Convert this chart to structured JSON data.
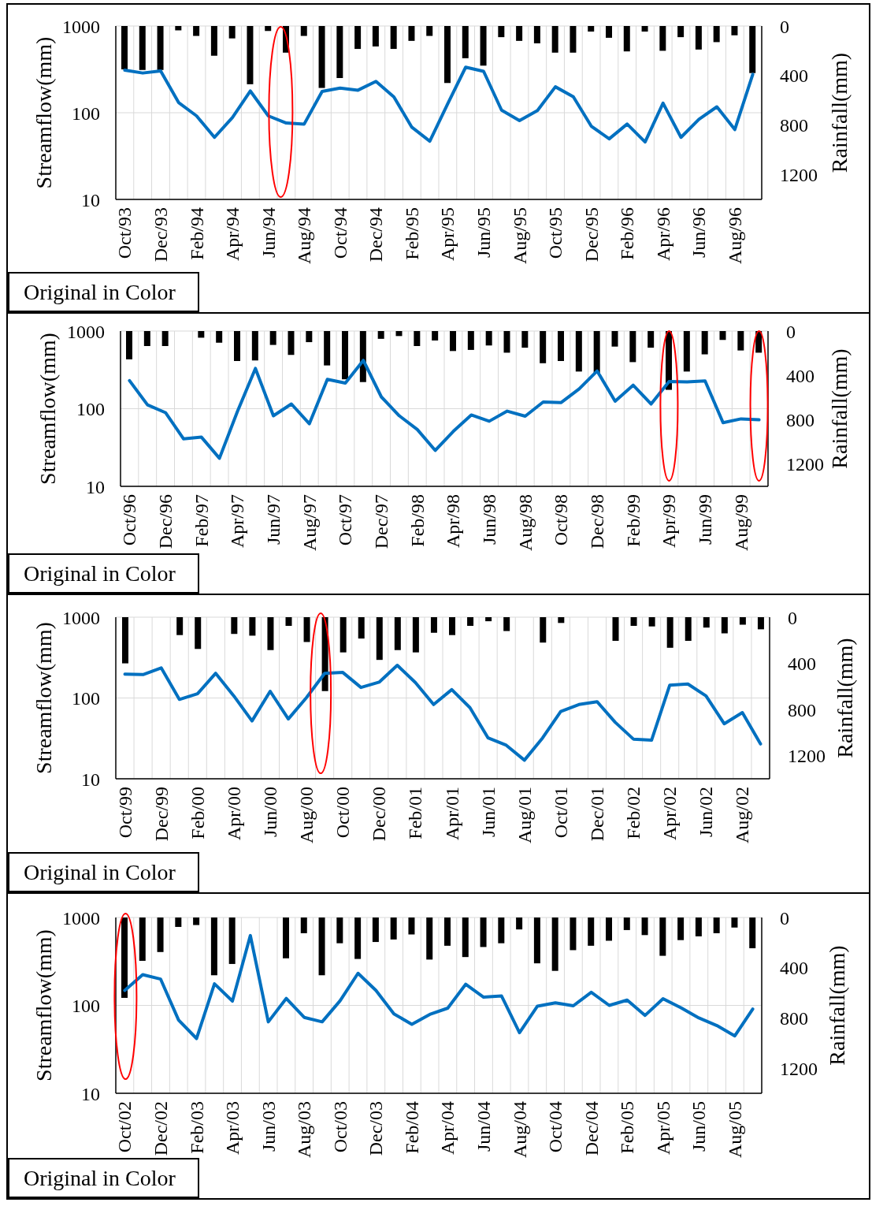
{
  "chart_data": [
    {
      "type": "bar",
      "categories": [
        "Oct/93",
        null,
        "Dec/93",
        null,
        "Feb/94",
        null,
        "Apr/94",
        null,
        "Jun/94",
        null,
        "Aug/94",
        null,
        "Oct/94",
        null,
        "Dec/94",
        null,
        "Feb/95",
        null,
        "Apr/95",
        null,
        "Jun/95",
        null,
        "Aug/95",
        null,
        "Oct/95",
        null,
        "Dec/95",
        null,
        "Feb/96",
        null,
        "Apr/96",
        null,
        "Jun/96",
        null,
        "Aug/96",
        null
      ],
      "series": [
        {
          "axis": "y2",
          "color": "#000000",
          "values": [
            350,
            355,
            355,
            35,
            80,
            240,
            100,
            470,
            40,
            215,
            80,
            500,
            420,
            185,
            165,
            185,
            120,
            80,
            460,
            260,
            320,
            90,
            120,
            140,
            215,
            215,
            45,
            95,
            205,
            45,
            200,
            90,
            190,
            130,
            75,
            380
          ]
        },
        {
          "type": "line",
          "color": "#0070c0",
          "values": [
            310,
            287,
            303,
            131,
            92,
            52,
            88,
            178,
            92,
            76,
            74,
            176,
            192,
            182,
            230,
            152,
            68,
            47,
            127,
            335,
            300,
            107,
            81,
            106,
            199,
            153,
            70,
            50,
            74,
            46,
            129,
            52,
            84,
            117,
            64,
            277
          ]
        }
      ],
      "ylabel": "Streamflow(mm)",
      "y2label": "Rainfall(mm)",
      "ylim": [
        10,
        1000
      ],
      "yticks": [
        10,
        100,
        1000
      ],
      "y2lim": [
        1400,
        0
      ],
      "y2ticks": [
        0,
        400,
        800,
        1200
      ],
      "log": "y",
      "grid": true,
      "annotations": [
        "Original in Color"
      ]
    },
    {
      "type": "bar",
      "categories": [
        "Oct/96",
        null,
        "Dec/96",
        null,
        "Feb/97",
        null,
        "Apr/97",
        null,
        "Jun/97",
        null,
        "Aug/97",
        null,
        "Oct/97",
        null,
        "Dec/97",
        null,
        "Feb/98",
        null,
        "Apr/98",
        null,
        "Jun/98",
        null,
        "Aug/98",
        null,
        "Oct/98",
        null,
        "Dec/98",
        null,
        "Feb/99",
        null,
        "Apr/99",
        null,
        "Jun/99",
        null,
        "Aug/99",
        null
      ],
      "series": [
        {
          "axis": "y2",
          "color": "#000000",
          "values": [
            255,
            135,
            135,
            0,
            60,
            105,
            270,
            265,
            125,
            215,
            100,
            310,
            435,
            460,
            70,
            45,
            135,
            85,
            180,
            170,
            130,
            195,
            150,
            290,
            270,
            365,
            380,
            140,
            280,
            150,
            530,
            365,
            210,
            80,
            175,
            195
          ]
        },
        {
          "type": "line",
          "color": "#0070c0",
          "values": [
            230,
            112,
            89,
            41,
            43,
            23,
            92,
            330,
            81,
            115,
            64,
            239,
            214,
            419,
            142,
            81,
            54,
            29,
            51,
            83,
            69,
            93,
            80,
            122,
            120,
            180,
            306,
            125,
            201,
            115,
            224,
            222,
            228,
            66,
            74,
            72
          ]
        }
      ],
      "ylabel": "Streamflow(mm)",
      "y2label": "Rainfall(mm)",
      "ylim": [
        10,
        1000
      ],
      "yticks": [
        10,
        100,
        1000
      ],
      "y2lim": [
        1400,
        0
      ],
      "y2ticks": [
        0,
        400,
        800,
        1200
      ],
      "log": "y",
      "grid": true,
      "annotations": [
        "Original in Color"
      ]
    },
    {
      "type": "bar",
      "categories": [
        "Oct/99",
        null,
        "Dec/99",
        null,
        "Feb/00",
        null,
        "Apr/00",
        null,
        "Jun/00",
        null,
        "Aug/00",
        null,
        "Oct/00",
        null,
        "Dec/00",
        null,
        "Feb/01",
        null,
        "Apr/01",
        null,
        "Jun/01",
        null,
        "Aug/01",
        null,
        "Oct/01",
        null,
        "Dec/01",
        null,
        "Feb/02",
        null,
        "Apr/02",
        null,
        "Jun/02",
        null,
        "Aug/02",
        null
      ],
      "series": [
        {
          "axis": "y2",
          "color": "#000000",
          "values": [
            400,
            0,
            0,
            155,
            275,
            0,
            145,
            160,
            285,
            75,
            215,
            640,
            305,
            185,
            370,
            285,
            305,
            135,
            155,
            75,
            35,
            120,
            0,
            220,
            50,
            0,
            0,
            205,
            75,
            80,
            265,
            205,
            90,
            140,
            65,
            105
          ]
        },
        {
          "type": "line",
          "color": "#0070c0",
          "values": [
            197,
            195,
            236,
            96,
            113,
            202,
            106,
            52,
            121,
            55,
            101,
            202,
            207,
            135,
            157,
            254,
            155,
            83,
            127,
            76,
            32,
            26,
            17,
            32,
            68,
            83,
            90,
            50,
            31,
            30,
            144,
            149,
            106,
            48,
            66,
            27
          ]
        }
      ],
      "ylabel": "Streamflow(mm)",
      "y2label": "Rainfall(mm)",
      "ylim": [
        10,
        1000
      ],
      "yticks": [
        10,
        100,
        1000
      ],
      "y2lim": [
        1400,
        0
      ],
      "y2ticks": [
        0,
        400,
        800,
        1200
      ],
      "log": "y",
      "grid": true,
      "annotations": [
        "Original in Color"
      ]
    },
    {
      "type": "bar",
      "categories": [
        "Oct/02",
        null,
        "Dec/02",
        null,
        "Feb/03",
        null,
        "Apr/03",
        null,
        "Jun/03",
        null,
        "Aug/03",
        null,
        "Oct/03",
        null,
        "Dec/03",
        null,
        "Feb/04",
        null,
        "Apr/04",
        null,
        "Jun/04",
        null,
        "Aug/04",
        null,
        "Oct/04",
        null,
        "Dec/04",
        null,
        "Feb/05",
        null,
        "Apr/05",
        null,
        "Jun/05",
        null,
        "Aug/05",
        null
      ],
      "series": [
        {
          "axis": "y2",
          "color": "#000000",
          "values": [
            640,
            345,
            275,
            75,
            60,
            460,
            370,
            0,
            0,
            325,
            125,
            460,
            205,
            330,
            195,
            175,
            135,
            335,
            225,
            315,
            235,
            205,
            95,
            365,
            425,
            260,
            225,
            185,
            100,
            140,
            305,
            180,
            150,
            125,
            80,
            245
          ]
        },
        {
          "type": "line",
          "color": "#0070c0",
          "values": [
            148,
            224,
            199,
            68,
            42,
            176,
            112,
            624,
            65,
            120,
            73,
            65,
            113,
            232,
            148,
            80,
            61,
            79,
            93,
            174,
            124,
            128,
            49,
            98,
            107,
            99,
            141,
            100,
            115,
            77,
            119,
            94,
            72,
            59,
            45,
            91
          ]
        }
      ],
      "ylabel": "Streamflow(mm)",
      "y2label": "Rainfall(mm)",
      "ylim": [
        10,
        1000
      ],
      "yticks": [
        10,
        100,
        1000
      ],
      "y2lim": [
        1400,
        0
      ],
      "y2ticks": [
        0,
        400,
        800,
        1200
      ],
      "log": "y",
      "grid": true,
      "annotations": [
        "Original in Color"
      ]
    }
  ]
}
